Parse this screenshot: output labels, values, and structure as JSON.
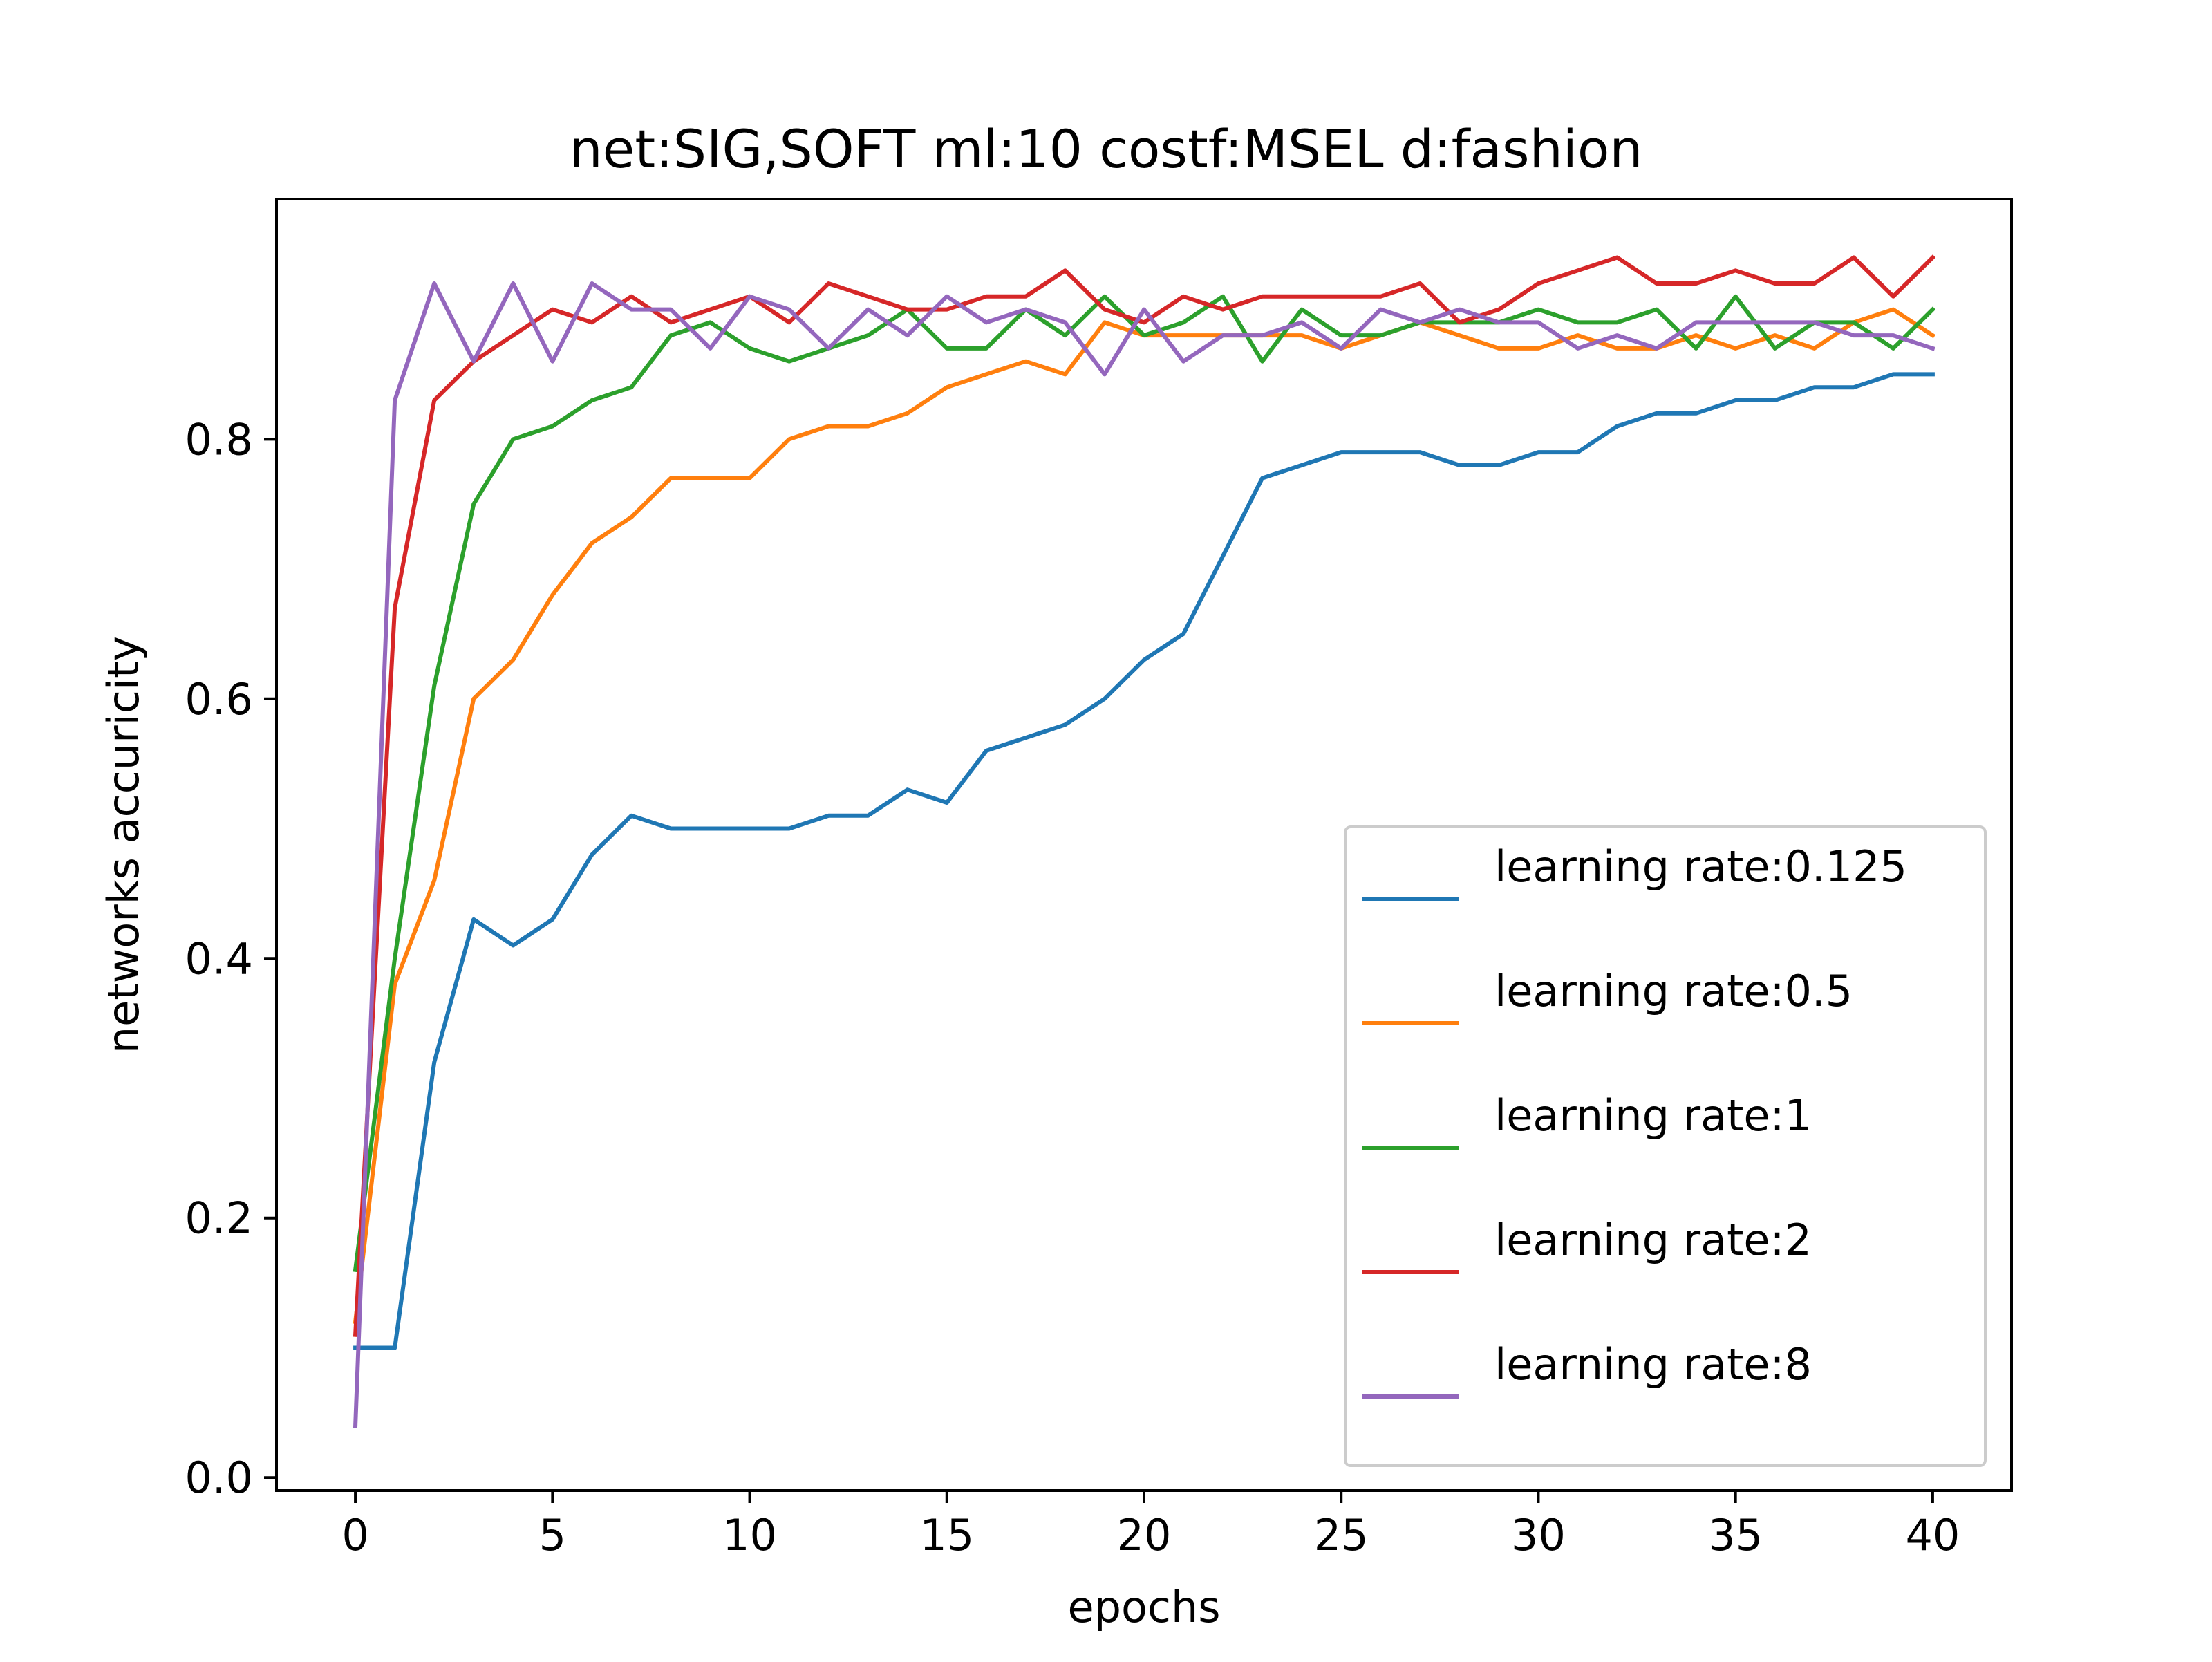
{
  "chart_data": {
    "type": "line",
    "title": "net:SIG,SOFT ml:10 costf:MSEL d:fashion",
    "xlabel": "epochs",
    "ylabel": "networks accuricity",
    "xlim": [
      -2,
      42
    ],
    "ylim": [
      -0.01,
      0.985
    ],
    "x_ticks": [
      0,
      5,
      10,
      15,
      20,
      25,
      30,
      35,
      40
    ],
    "x_tick_labels": [
      "0",
      "5",
      "10",
      "15",
      "20",
      "25",
      "30",
      "35",
      "40"
    ],
    "y_ticks": [
      0.0,
      0.2,
      0.4,
      0.6,
      0.8
    ],
    "y_tick_labels": [
      "0.0",
      "0.2",
      "0.4",
      "0.6",
      "0.8"
    ],
    "grid": false,
    "legend_position": "lower-right",
    "x": [
      0,
      1,
      2,
      3,
      4,
      5,
      6,
      7,
      8,
      9,
      10,
      11,
      12,
      13,
      14,
      15,
      16,
      17,
      18,
      19,
      20,
      21,
      22,
      23,
      24,
      25,
      26,
      27,
      28,
      29,
      30,
      31,
      32,
      33,
      34,
      35,
      36,
      37,
      38,
      39,
      40
    ],
    "series": [
      {
        "name": "learning rate:0.125",
        "color": "#1f77b4",
        "values": [
          0.1,
          0.1,
          0.32,
          0.43,
          0.41,
          0.43,
          0.48,
          0.51,
          0.5,
          0.5,
          0.5,
          0.5,
          0.51,
          0.51,
          0.53,
          0.52,
          0.56,
          0.57,
          0.58,
          0.6,
          0.63,
          0.65,
          0.71,
          0.77,
          0.78,
          0.79,
          0.79,
          0.79,
          0.78,
          0.78,
          0.79,
          0.79,
          0.81,
          0.82,
          0.82,
          0.83,
          0.83,
          0.84,
          0.84,
          0.85,
          0.85
        ]
      },
      {
        "name": "learning rate:0.5",
        "color": "#ff7f0e",
        "values": [
          0.12,
          0.38,
          0.46,
          0.6,
          0.63,
          0.68,
          0.72,
          0.74,
          0.77,
          0.77,
          0.77,
          0.8,
          0.81,
          0.81,
          0.82,
          0.84,
          0.85,
          0.86,
          0.85,
          0.89,
          0.88,
          0.88,
          0.88,
          0.88,
          0.88,
          0.87,
          0.88,
          0.89,
          0.88,
          0.87,
          0.87,
          0.88,
          0.87,
          0.87,
          0.88,
          0.87,
          0.88,
          0.87,
          0.89,
          0.9,
          0.88
        ]
      },
      {
        "name": "learning rate:1",
        "color": "#2ca02c",
        "values": [
          0.16,
          0.4,
          0.61,
          0.75,
          0.8,
          0.81,
          0.83,
          0.84,
          0.88,
          0.89,
          0.87,
          0.86,
          0.87,
          0.88,
          0.9,
          0.87,
          0.87,
          0.9,
          0.88,
          0.91,
          0.88,
          0.89,
          0.91,
          0.86,
          0.9,
          0.88,
          0.88,
          0.89,
          0.89,
          0.89,
          0.9,
          0.89,
          0.89,
          0.9,
          0.87,
          0.91,
          0.87,
          0.89,
          0.89,
          0.87,
          0.9
        ]
      },
      {
        "name": "learning rate:2",
        "color": "#d62728",
        "values": [
          0.11,
          0.67,
          0.83,
          0.86,
          0.88,
          0.9,
          0.89,
          0.91,
          0.89,
          0.9,
          0.91,
          0.89,
          0.92,
          0.91,
          0.9,
          0.9,
          0.91,
          0.91,
          0.93,
          0.9,
          0.89,
          0.91,
          0.9,
          0.91,
          0.91,
          0.91,
          0.91,
          0.92,
          0.89,
          0.9,
          0.92,
          0.93,
          0.94,
          0.92,
          0.92,
          0.93,
          0.92,
          0.92,
          0.94,
          0.91,
          0.94
        ]
      },
      {
        "name": "learning rate:8",
        "color": "#9467bd",
        "values": [
          0.04,
          0.83,
          0.92,
          0.86,
          0.92,
          0.86,
          0.92,
          0.9,
          0.9,
          0.87,
          0.91,
          0.9,
          0.87,
          0.9,
          0.88,
          0.91,
          0.89,
          0.9,
          0.89,
          0.85,
          0.9,
          0.86,
          0.88,
          0.88,
          0.89,
          0.87,
          0.9,
          0.89,
          0.9,
          0.89,
          0.89,
          0.87,
          0.88,
          0.87,
          0.89,
          0.89,
          0.89,
          0.89,
          0.88,
          0.88,
          0.87
        ]
      }
    ]
  }
}
